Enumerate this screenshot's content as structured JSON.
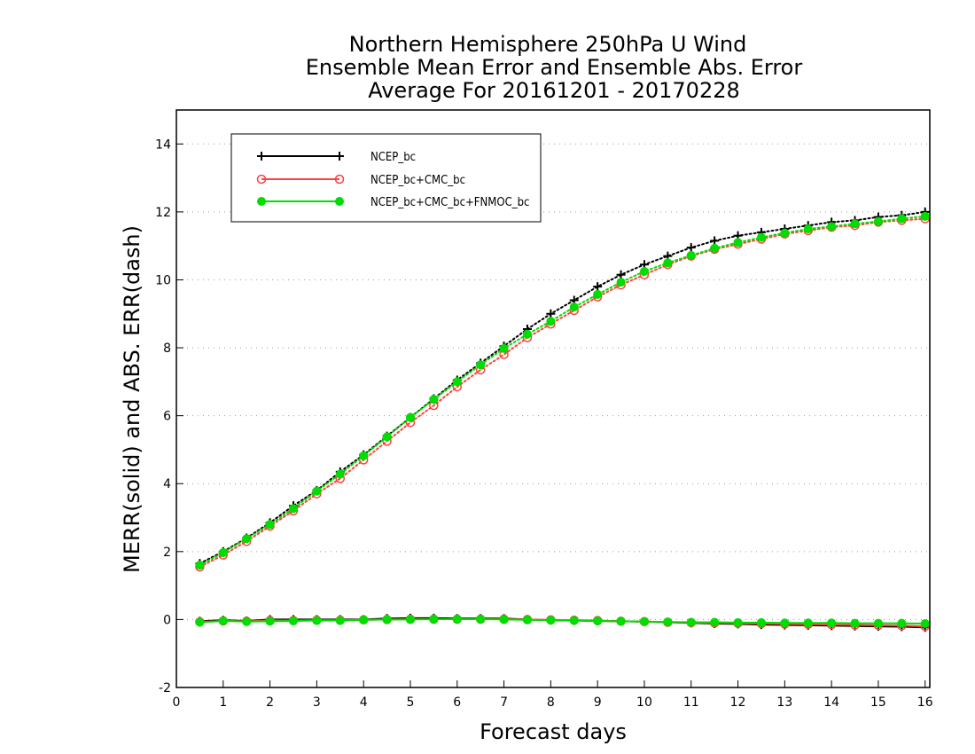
{
  "chart_data": {
    "type": "line",
    "title_lines": [
      "Northern Hemisphere 250hPa U Wind",
      "Ensemble Mean Error and Ensemble Abs. Error",
      "Average For 20161201 - 20170228"
    ],
    "xlabel": "Forecast days",
    "ylabel": "MERR(solid) and ABS. ERR(dash)",
    "xlim": [
      0,
      16.1
    ],
    "ylim": [
      -2,
      15
    ],
    "xticks": [
      0,
      1,
      2,
      3,
      4,
      5,
      6,
      7,
      8,
      9,
      10,
      11,
      12,
      13,
      14,
      15,
      16
    ],
    "yticks": [
      -2,
      0,
      2,
      4,
      6,
      8,
      10,
      12,
      14
    ],
    "grid": "horizontal dotted",
    "legend_position": "top-left",
    "x": [
      0.5,
      1.0,
      1.5,
      2.0,
      2.5,
      3.0,
      3.5,
      4.0,
      4.5,
      5.0,
      5.5,
      6.0,
      6.5,
      7.0,
      7.5,
      8.0,
      8.5,
      9.0,
      9.5,
      10.0,
      10.5,
      11.0,
      11.5,
      12.0,
      12.5,
      13.0,
      13.5,
      14.0,
      14.5,
      15.0,
      15.5,
      16.0
    ],
    "series": [
      {
        "name": "NCEP_bc",
        "color": "#000000",
        "marker": "plus",
        "abs_err": [
          1.65,
          2.0,
          2.4,
          2.85,
          3.35,
          3.8,
          4.35,
          4.85,
          5.4,
          5.95,
          6.5,
          7.05,
          7.55,
          8.05,
          8.55,
          9.0,
          9.4,
          9.8,
          10.15,
          10.45,
          10.7,
          10.95,
          11.15,
          11.3,
          11.4,
          11.5,
          11.6,
          11.7,
          11.75,
          11.85,
          11.9,
          12.0
        ],
        "mean_err": [
          -0.05,
          -0.02,
          -0.04,
          0.0,
          0.0,
          0.0,
          0.0,
          0.0,
          0.03,
          0.04,
          0.04,
          0.03,
          0.03,
          0.03,
          0.0,
          -0.02,
          -0.03,
          -0.04,
          -0.05,
          -0.06,
          -0.08,
          -0.1,
          -0.12,
          -0.13,
          -0.15,
          -0.16,
          -0.17,
          -0.18,
          -0.19,
          -0.2,
          -0.21,
          -0.23
        ]
      },
      {
        "name": "NCEP_bc+CMC_bc",
        "color": "#ff4040",
        "marker": "open-circle",
        "abs_err": [
          1.55,
          1.9,
          2.3,
          2.75,
          3.2,
          3.7,
          4.15,
          4.7,
          5.25,
          5.8,
          6.3,
          6.85,
          7.35,
          7.8,
          8.3,
          8.7,
          9.1,
          9.5,
          9.85,
          10.15,
          10.45,
          10.7,
          10.9,
          11.05,
          11.2,
          11.35,
          11.45,
          11.55,
          11.6,
          11.7,
          11.75,
          11.8
        ],
        "mean_err": [
          -0.07,
          -0.04,
          -0.05,
          -0.03,
          -0.03,
          -0.02,
          -0.02,
          -0.01,
          0.0,
          0.01,
          0.01,
          0.01,
          0.01,
          0.01,
          0.0,
          -0.01,
          -0.02,
          -0.03,
          -0.05,
          -0.06,
          -0.08,
          -0.09,
          -0.1,
          -0.11,
          -0.12,
          -0.13,
          -0.14,
          -0.15,
          -0.16,
          -0.17,
          -0.18,
          -0.2
        ]
      },
      {
        "name": "NCEP_bc+CMC_bc+FNMOC_bc",
        "color": "#00dd00",
        "marker": "filled-circle",
        "abs_err": [
          1.6,
          1.97,
          2.38,
          2.8,
          3.27,
          3.78,
          4.28,
          4.82,
          5.38,
          5.95,
          6.48,
          7.0,
          7.5,
          7.98,
          8.4,
          8.78,
          9.2,
          9.57,
          9.93,
          10.25,
          10.5,
          10.72,
          10.93,
          11.1,
          11.25,
          11.38,
          11.5,
          11.57,
          11.65,
          11.72,
          11.8,
          11.87
        ],
        "mean_err": [
          -0.08,
          -0.04,
          -0.06,
          -0.05,
          -0.04,
          -0.03,
          -0.03,
          -0.01,
          0.0,
          0.0,
          0.01,
          0.01,
          0.01,
          0.0,
          -0.01,
          -0.02,
          -0.03,
          -0.04,
          -0.05,
          -0.06,
          -0.07,
          -0.08,
          -0.08,
          -0.09,
          -0.09,
          -0.1,
          -0.1,
          -0.1,
          -0.11,
          -0.11,
          -0.11,
          -0.12
        ]
      }
    ]
  }
}
